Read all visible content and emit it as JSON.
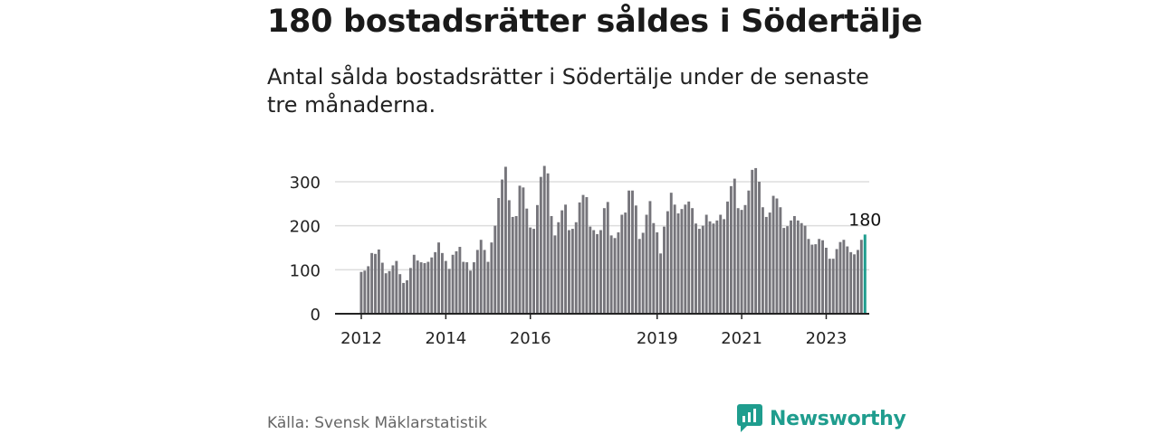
{
  "title": "180 bostadsrätter såldes i Södertälje",
  "subtitle": "Antal sålda bostadsrätter i Södertälje under de senaste tre månaderna.",
  "source": "Källa: Svensk Mäklarstatistik",
  "brand": "Newsworthy",
  "colors": {
    "bar": "#76757b",
    "highlight": "#1f9d8e",
    "grid": "#dddddd",
    "axis": "#222222"
  },
  "chart_data": {
    "type": "bar",
    "title": "180 bostadsrätter såldes i Södertälje",
    "xlabel": "",
    "ylabel": "",
    "ylim": [
      0,
      340
    ],
    "yticks": [
      0,
      100,
      200,
      300
    ],
    "xticks": [
      {
        "label": "2012",
        "index": 0
      },
      {
        "label": "2014",
        "index": 24
      },
      {
        "label": "2016",
        "index": 48
      },
      {
        "label": "2019",
        "index": 84
      },
      {
        "label": "2021",
        "index": 108
      },
      {
        "label": "2023",
        "index": 132
      }
    ],
    "highlight_label": "180",
    "values": [
      95,
      98,
      108,
      138,
      136,
      146,
      116,
      92,
      97,
      110,
      120,
      90,
      70,
      76,
      104,
      134,
      121,
      117,
      115,
      118,
      128,
      140,
      162,
      138,
      120,
      102,
      134,
      142,
      152,
      118,
      117,
      98,
      117,
      145,
      168,
      145,
      118,
      162,
      200,
      263,
      305,
      334,
      258,
      220,
      222,
      291,
      287,
      239,
      196,
      193,
      247,
      311,
      336,
      319,
      222,
      178,
      208,
      235,
      248,
      190,
      193,
      208,
      253,
      270,
      265,
      198,
      190,
      181,
      190,
      240,
      254,
      178,
      172,
      185,
      225,
      230,
      280,
      280,
      246,
      170,
      184,
      225,
      256,
      206,
      185,
      137,
      198,
      233,
      275,
      248,
      228,
      238,
      248,
      255,
      240,
      205,
      193,
      200,
      225,
      210,
      205,
      212,
      225,
      215,
      255,
      290,
      307,
      240,
      236,
      247,
      280,
      327,
      331,
      300,
      242,
      220,
      230,
      268,
      262,
      242,
      195,
      199,
      212,
      222,
      212,
      206,
      200,
      170,
      157,
      158,
      170,
      167,
      150,
      125,
      125,
      147,
      163,
      168,
      153,
      140,
      135,
      145,
      168,
      180
    ]
  }
}
